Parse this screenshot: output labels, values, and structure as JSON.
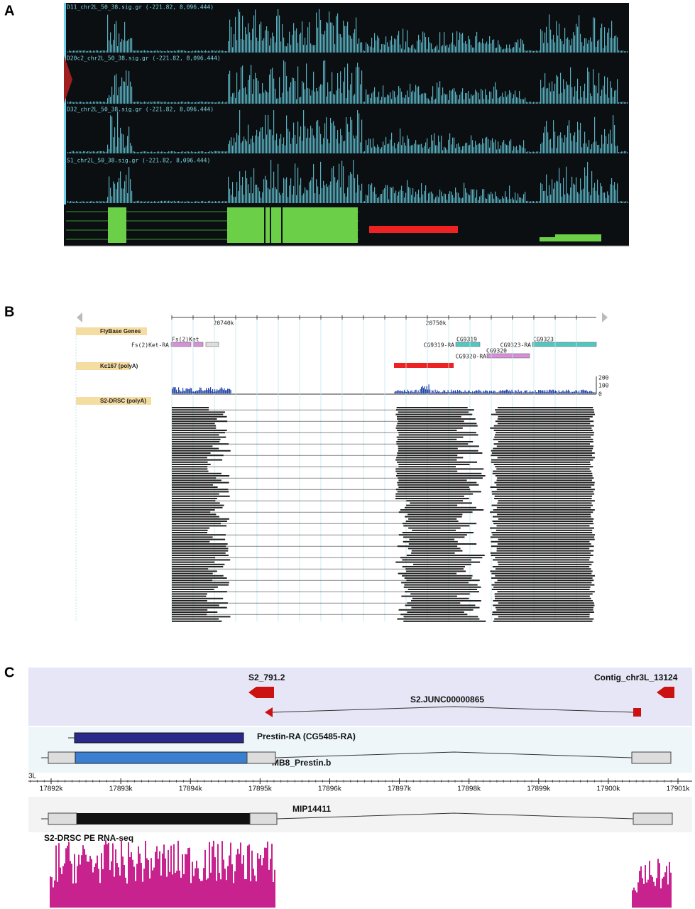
{
  "panel_a": {
    "label": "A",
    "tracks": [
      "D11_chr2L_50_38.sig.gr (-221.82, 8,096.444)",
      "D20c2_chr2L_50_38.sig.gr (-221.82, 8,096.444)",
      "D32_chr2L_50_38.sig.gr (-221.82, 8,096.444)",
      "S1_chr2L_50_38.sig.gr (-221.82, 8,096.444)"
    ]
  },
  "panel_b": {
    "label": "B",
    "ruler_ticks": [
      "20740k",
      "20750k"
    ],
    "tracks": [
      "FlyBase Genes",
      "Kc167 (polyA)",
      "S2-DRSC (polyA)"
    ],
    "genes": [
      "Fs(2)Ket",
      "Fs(2)Ket-RA",
      "CG9319",
      "CG9319-RA",
      "CG9320",
      "CG9320-RA",
      "CG9323",
      "CG9323-RA"
    ],
    "scale": [
      "200",
      "100",
      "0"
    ]
  },
  "panel_c": {
    "label": "C",
    "features": {
      "s2": "S2_791.2",
      "contig": "Contig_chr3L_13124",
      "junc": "S2.JUNC00000865",
      "prestin": "Prestin-RA (CG5485-RA)",
      "mb8": "MB8_Prestin.b",
      "mip": "MIP14411",
      "rnaseq": "S2-DRSC PE RNA-seq"
    },
    "chrom": "3L",
    "axis_ticks": [
      "17892k",
      "17893k",
      "17894k",
      "17895k",
      "17896k",
      "17897k",
      "17898k",
      "17899k",
      "17900k",
      "17901k"
    ]
  }
}
